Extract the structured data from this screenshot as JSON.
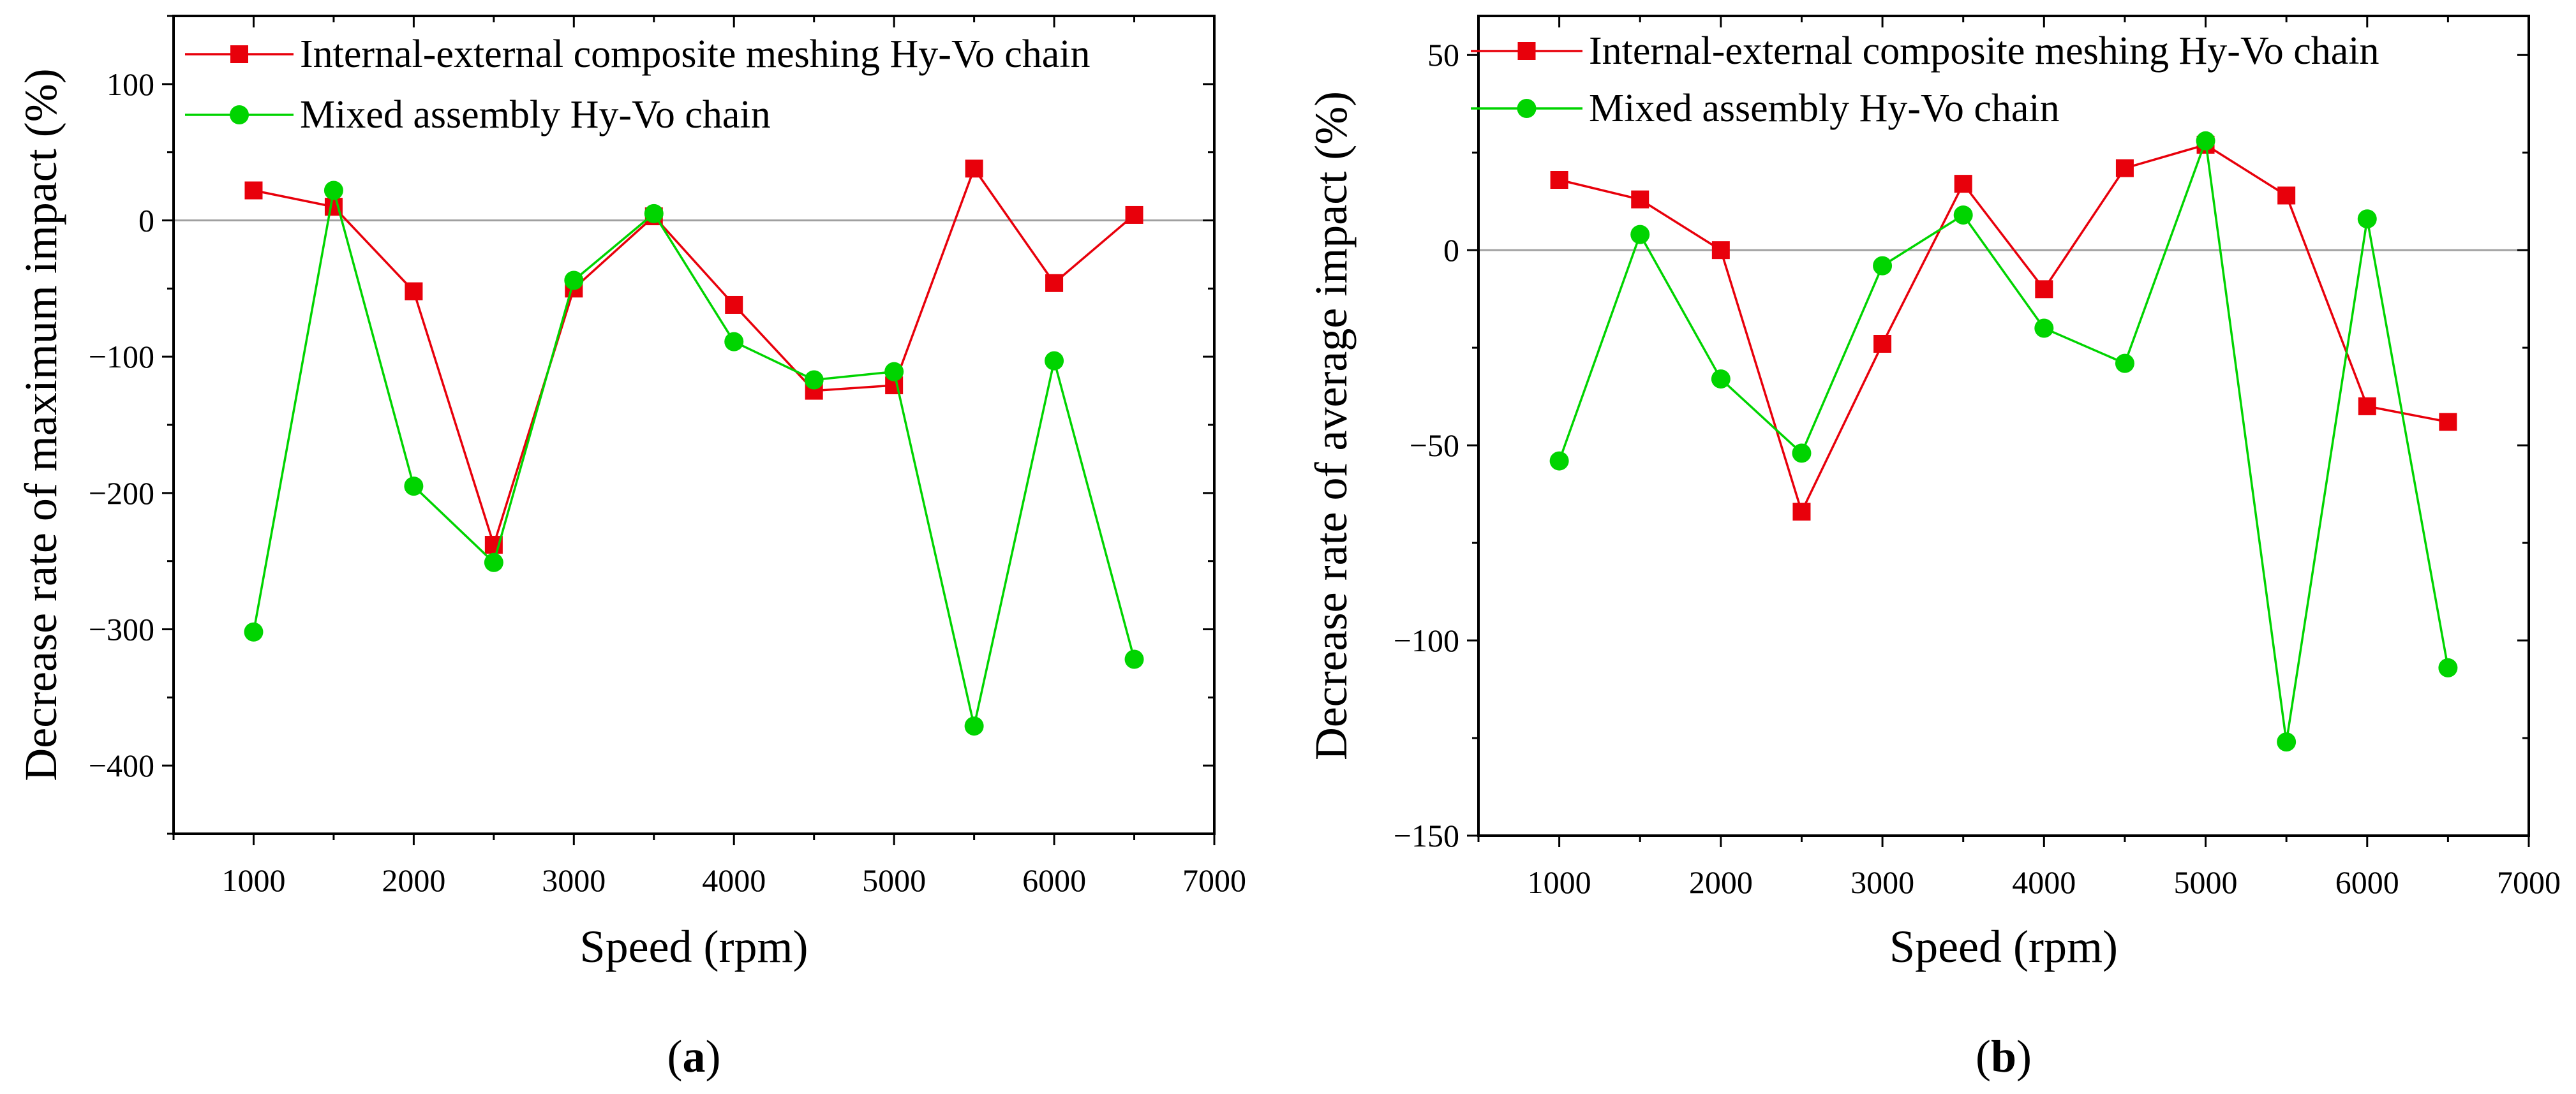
{
  "chart_data": [
    {
      "type": "line",
      "panel_label": "(a)",
      "panel_letter": "a",
      "xlabel": "Speed (rpm)",
      "ylabel": "Decrease rate of maximum impact (%)",
      "xlim": [
        500,
        7000
      ],
      "ylim": [
        -450,
        150
      ],
      "xticks": [
        1000,
        2000,
        3000,
        4000,
        5000,
        6000,
        7000
      ],
      "yticks": [
        -400,
        -300,
        -200,
        -100,
        0,
        100
      ],
      "x": [
        1000,
        1500,
        2000,
        2500,
        3000,
        3500,
        4000,
        4500,
        5000,
        5500,
        6000,
        6500
      ],
      "series": [
        {
          "name": "Internal-external composite meshing Hy-Vo chain",
          "color": "#e8000b",
          "marker": "square",
          "values": [
            22,
            10,
            -52,
            -238,
            -50,
            3,
            -62,
            -125,
            -121,
            38,
            -46,
            4
          ]
        },
        {
          "name": "Mixed assembly Hy-Vo chain",
          "color": "#00d400",
          "marker": "circle",
          "values": [
            -302,
            22,
            -195,
            -251,
            -44,
            5,
            -89,
            -117,
            -111,
            -371,
            -103,
            -322
          ]
        }
      ],
      "legend_position": "top-left"
    },
    {
      "type": "line",
      "panel_label": "(b)",
      "panel_letter": "b",
      "xlabel": "Speed (rpm)",
      "ylabel": "Decrease rate of average impact (%)",
      "xlim": [
        500,
        7000
      ],
      "ylim": [
        -150,
        60
      ],
      "xticks": [
        1000,
        2000,
        3000,
        4000,
        5000,
        6000,
        7000
      ],
      "yticks": [
        -150,
        -100,
        -50,
        0,
        50
      ],
      "x": [
        1000,
        1500,
        2000,
        2500,
        3000,
        3500,
        4000,
        4500,
        5000,
        5500,
        6000,
        6500
      ],
      "series": [
        {
          "name": "Internal-external composite meshing Hy-Vo chain",
          "color": "#e8000b",
          "marker": "square",
          "values": [
            18,
            13,
            0,
            -67,
            -24,
            17,
            -10,
            21,
            27,
            14,
            -40,
            -44
          ]
        },
        {
          "name": "Mixed assembly Hy-Vo chain",
          "color": "#00d400",
          "marker": "circle",
          "values": [
            -54,
            4,
            -33,
            -52,
            -4,
            9,
            -20,
            -29,
            28,
            -126,
            8,
            -107
          ]
        }
      ],
      "legend_position": "top-left"
    }
  ]
}
